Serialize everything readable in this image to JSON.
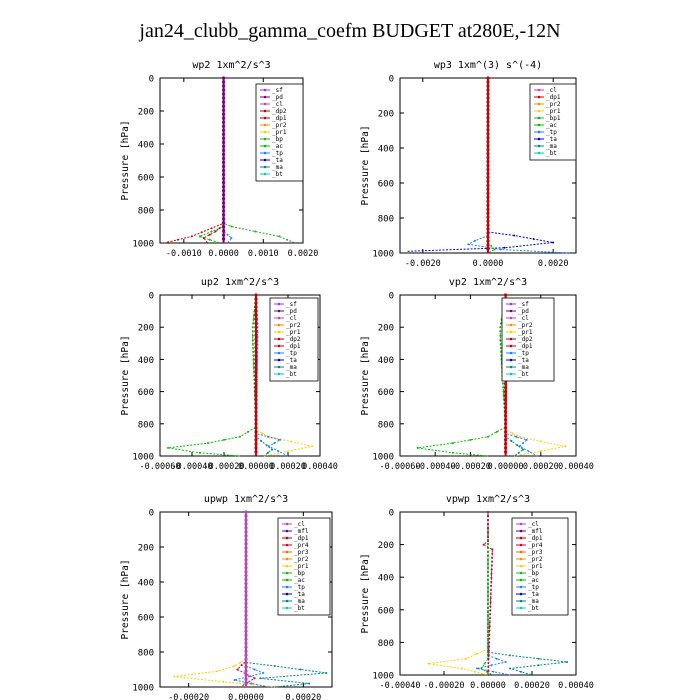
{
  "page_title": "jan24_clubb_gamma_coefm  BUDGET at280E,-12N",
  "y_axis_label": "Pressure [hPa]",
  "colors": {
    "sf": "#9b30ff",
    "pd": "#7a0080",
    "cl": "#c040c0",
    "dp2": "#b8001a",
    "dp1": "#cc0000",
    "pr2": "#ff8c00",
    "pr1": "#ffd000",
    "pr3": "#ff6600",
    "pr4": "#cc0044",
    "bp": "#20b020",
    "bp1": "#20b020",
    "ac": "#00c000",
    "tp": "#2080ff",
    "ta": "#0000cc",
    "ma": "#008888",
    "bt": "#00cccc",
    "mfl": "#660099"
  },
  "chart_data": [
    {
      "type": "line",
      "id": "wp2",
      "title": "wp2  1xm^2/s^3",
      "xlim": [
        -0.0016,
        0.002
      ],
      "ylim": [
        1000,
        0
      ],
      "xticks": [
        -0.001,
        0.0,
        0.001,
        0.002
      ],
      "xtick_labels": [
        "-0.0010",
        "0.0000",
        "0.0010",
        "0.0020"
      ],
      "yticks": [
        0,
        200,
        400,
        600,
        800,
        1000
      ],
      "legend": [
        "_sf",
        "_pd",
        "_cl",
        "_dp2",
        "_dp1",
        "_pr2",
        "_pr1",
        "_bp",
        "_ac",
        "_tp",
        "_ta",
        "_ma",
        "_bt"
      ],
      "series": [
        {
          "name": "_bp",
          "key": "bp",
          "x": [
            0,
            0,
            0.0002,
            0.0008,
            0.0014,
            0.0018
          ],
          "y": [
            0,
            880,
            900,
            930,
            960,
            1000
          ]
        },
        {
          "name": "_dp1",
          "key": "dp1",
          "x": [
            0,
            0,
            -0.0003,
            -0.0008,
            -0.0015
          ],
          "y": [
            0,
            880,
            910,
            960,
            1000
          ]
        },
        {
          "name": "_dp2",
          "key": "dp2",
          "x": [
            0,
            0,
            -0.0002,
            -0.0005,
            -0.0004
          ],
          "y": [
            0,
            890,
            930,
            970,
            1000
          ]
        },
        {
          "name": "_ac",
          "key": "ac",
          "x": [
            0,
            0,
            -0.0003,
            -0.0006,
            -0.0001
          ],
          "y": [
            0,
            900,
            930,
            960,
            1000
          ]
        },
        {
          "name": "_tp",
          "key": "tp",
          "x": [
            0,
            0,
            0.0002,
            0.0001
          ],
          "y": [
            0,
            930,
            970,
            1000
          ]
        },
        {
          "name": "_pd",
          "key": "pd",
          "x": [
            0,
            0
          ],
          "y": [
            0,
            1000
          ]
        }
      ]
    },
    {
      "type": "line",
      "id": "wp3",
      "title": "wp3  1xm^(3) s^(-4)",
      "xlim": [
        -0.0027,
        0.0027
      ],
      "ylim": [
        1000,
        0
      ],
      "xticks": [
        -0.002,
        0.0,
        0.002
      ],
      "xtick_labels": [
        "-0.0020",
        "0.0000",
        "0.0020"
      ],
      "yticks": [
        0,
        200,
        400,
        600,
        800,
        1000
      ],
      "legend": [
        "_cl",
        "_dp1",
        "_pr2",
        "_pr1",
        "_bp1",
        "_ac",
        "_tp",
        "_ta",
        "_ma",
        "_bt"
      ],
      "series": [
        {
          "name": "_ta",
          "key": "ta",
          "x": [
            0,
            0,
            0.0008,
            0.002,
            0.0005,
            -0.0025
          ],
          "y": [
            0,
            880,
            900,
            940,
            970,
            990
          ]
        },
        {
          "name": "_tp",
          "key": "tp",
          "x": [
            0,
            0,
            -0.0004,
            -0.0006,
            0.0004,
            0.0025
          ],
          "y": [
            0,
            900,
            930,
            950,
            980,
            1000
          ]
        },
        {
          "name": "_bp1",
          "key": "bp1",
          "x": [
            0,
            0,
            0.0002,
            0.0
          ],
          "y": [
            0,
            940,
            980,
            1000
          ]
        },
        {
          "name": "_dp1",
          "key": "dp1",
          "x": [
            0,
            0
          ],
          "y": [
            0,
            1000
          ]
        }
      ]
    },
    {
      "type": "line",
      "id": "up2",
      "title": "up2  1xm^2/s^3",
      "xlim": [
        -0.0006,
        0.0004
      ],
      "ylim": [
        1000,
        0
      ],
      "xticks": [
        -0.0006,
        -0.0004,
        -0.0002,
        0.0,
        0.0002,
        0.0004
      ],
      "xtick_labels": [
        "-0.00060",
        "-0.00040",
        "-0.00020",
        "0.00000",
        "0.00020",
        "0.00040"
      ],
      "yticks": [
        0,
        200,
        400,
        600,
        800,
        1000
      ],
      "legend": [
        "_sf",
        "_pd",
        "_cl",
        "_pr2",
        "_pr1",
        "_dp2",
        "_dp1",
        "_tp",
        "_ta",
        "_ma",
        "_bt"
      ],
      "series": [
        {
          "name": "_dp1",
          "key": "ac",
          "x": [
            0,
            -2e-05,
            -2e-05,
            0,
            -0.0001,
            -0.0003,
            -0.00055,
            -0.00035,
            -0.0001
          ],
          "y": [
            0,
            200,
            280,
            820,
            880,
            920,
            950,
            980,
            1000
          ]
        },
        {
          "name": "_pr1",
          "key": "pr1",
          "x": [
            0,
            0,
            8e-05,
            0.00022,
            0.00035,
            0.0002,
            5e-05
          ],
          "y": [
            0,
            840,
            880,
            910,
            940,
            970,
            1000
          ]
        },
        {
          "name": "_tp",
          "key": "tp",
          "x": [
            0,
            1e-05,
            1e-05,
            0,
            0.00015,
            8e-05,
            0.0002
          ],
          "y": [
            0,
            200,
            260,
            860,
            900,
            940,
            1000
          ]
        },
        {
          "name": "_ma",
          "key": "ma",
          "x": [
            0,
            0,
            0.0001,
            5e-05
          ],
          "y": [
            0,
            880,
            960,
            1000
          ]
        },
        {
          "name": "_pd",
          "key": "dp1",
          "x": [
            0,
            0
          ],
          "y": [
            0,
            1000
          ]
        }
      ]
    },
    {
      "type": "line",
      "id": "vp2",
      "title": "vp2  1xm^2/s^3",
      "xlim": [
        -0.0006,
        0.0004
      ],
      "ylim": [
        1000,
        0
      ],
      "xticks": [
        -0.0006,
        -0.0004,
        -0.0002,
        0.0,
        0.0002,
        0.0004
      ],
      "xtick_labels": [
        "-0.00060",
        "-0.00040",
        "-0.00020",
        "0.00000",
        "0.00020",
        "0.00040"
      ],
      "yticks": [
        0,
        200,
        400,
        600,
        800,
        1000
      ],
      "legend": [
        "_sf",
        "_pd",
        "_cl",
        "_pr2",
        "_pr1",
        "_dp2",
        "_dp1",
        "_tp",
        "_ta",
        "_ma",
        "_bt"
      ],
      "series": [
        {
          "name": "_dp1",
          "key": "ac",
          "x": [
            0,
            -3e-05,
            -3e-05,
            0,
            -0.0001,
            -0.0003,
            -0.0005,
            -0.0003,
            -0.0001
          ],
          "y": [
            0,
            200,
            280,
            820,
            880,
            920,
            950,
            980,
            1000
          ]
        },
        {
          "name": "_pr1",
          "key": "pr1",
          "x": [
            0,
            0,
            8e-05,
            0.0002,
            0.00034,
            0.0002,
            5e-05
          ],
          "y": [
            0,
            840,
            880,
            910,
            940,
            970,
            1000
          ]
        },
        {
          "name": "_tp",
          "key": "tp",
          "x": [
            0,
            1e-05,
            1e-05,
            0,
            0.00012,
            8e-05,
            0.00018
          ],
          "y": [
            0,
            200,
            260,
            860,
            900,
            940,
            1000
          ]
        },
        {
          "name": "_ma",
          "key": "ma",
          "x": [
            0,
            0,
            0.0001,
            5e-05
          ],
          "y": [
            0,
            880,
            960,
            1000
          ]
        },
        {
          "name": "_pd",
          "key": "dp1",
          "x": [
            0,
            0
          ],
          "y": [
            0,
            1000
          ]
        }
      ]
    },
    {
      "type": "line",
      "id": "upwp",
      "title": "upwp  1xm^2/s^3",
      "xlim": [
        -0.0003,
        0.0003
      ],
      "ylim": [
        1000,
        0
      ],
      "xticks": [
        -0.0002,
        0.0,
        0.0002
      ],
      "xtick_labels": [
        "-0.00020",
        "0.00000",
        "0.00020"
      ],
      "yticks": [
        0,
        200,
        400,
        600,
        800,
        1000
      ],
      "legend": [
        "_cl",
        "_mfl",
        "_dp1",
        "_pr4",
        "_pr3",
        "_pr2",
        "_pr1",
        "_bp",
        "_ac",
        "_tp",
        "_ta",
        "_ma",
        "_bt"
      ],
      "series": [
        {
          "name": "_ma",
          "key": "ma",
          "x": [
            0,
            0,
            0.0001,
            0.00028,
            5e-05,
            0.00022,
            0.0001
          ],
          "y": [
            0,
            860,
            880,
            920,
            950,
            980,
            1000
          ]
        },
        {
          "name": "_pr1",
          "key": "pr1",
          "x": [
            0,
            0,
            -4e-05,
            -0.0001,
            -0.00025,
            -8e-05,
            0.0001
          ],
          "y": [
            0,
            840,
            880,
            910,
            940,
            970,
            1000
          ]
        },
        {
          "name": "_tp",
          "key": "tp",
          "x": [
            0,
            0,
            6e-05,
            -4e-05,
            8e-05
          ],
          "y": [
            0,
            880,
            920,
            960,
            1000
          ]
        },
        {
          "name": "_pr4",
          "key": "pr4",
          "x": [
            0,
            0,
            -3e-05,
            3e-05,
            -2e-05
          ],
          "y": [
            0,
            850,
            900,
            950,
            1000
          ]
        },
        {
          "name": "_cl",
          "key": "cl",
          "x": [
            0,
            0
          ],
          "y": [
            0,
            1000
          ]
        }
      ]
    },
    {
      "type": "line",
      "id": "vpwp",
      "title": "vpwp  1xm^2/s^3",
      "xlim": [
        -0.0004,
        0.0004
      ],
      "ylim": [
        1000,
        0
      ],
      "xticks": [
        -0.0004,
        -0.0002,
        0.0,
        0.0002,
        0.0004
      ],
      "xtick_labels": [
        "-0.00040",
        "-0.00020",
        "0.00000",
        "0.00020",
        "0.00040"
      ],
      "yticks": [
        0,
        200,
        400,
        600,
        800,
        1000
      ],
      "legend": [
        "_cl",
        "_mfl",
        "_dp1",
        "_pr4",
        "_pr3",
        "_pr2",
        "_pr1",
        "_bp",
        "_ac",
        "_tp",
        "_ta",
        "_ma",
        "_bt"
      ],
      "series": [
        {
          "name": "_pr1",
          "key": "pr1",
          "x": [
            0,
            0,
            -5e-05,
            -0.0001,
            -0.00027,
            -0.00012,
            0.0
          ],
          "y": [
            0,
            840,
            870,
            900,
            930,
            960,
            1000
          ]
        },
        {
          "name": "_ma",
          "key": "ma",
          "x": [
            0,
            0,
            0.0001,
            0.00036,
            0.0001,
            0.0002
          ],
          "y": [
            0,
            860,
            880,
            920,
            960,
            1000
          ]
        },
        {
          "name": "_tp",
          "key": "tp",
          "x": [
            0,
            0,
            8e-05,
            -5e-05,
            0.0001
          ],
          "y": [
            0,
            880,
            920,
            960,
            1000
          ]
        },
        {
          "name": "_ac",
          "key": "ac",
          "x": [
            0,
            0,
            -3e-05,
            2e-05
          ],
          "y": [
            0,
            900,
            960,
            1000
          ]
        },
        {
          "name": "_pr4",
          "key": "pr4",
          "x": [
            0,
            0,
            -2e-05,
            2e-05,
            0
          ],
          "y": [
            0,
            180,
            200,
            230,
            1000
          ]
        }
      ]
    }
  ]
}
